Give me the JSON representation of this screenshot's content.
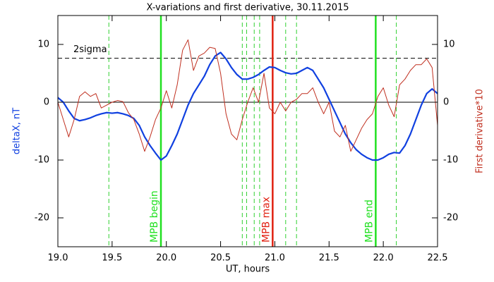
{
  "chart_data": {
    "type": "line",
    "title": "X-variations and first derivative, 30.11.2015",
    "xlabel": "UT, hours",
    "ylabel": "deltaX, nT",
    "y2label": "First derivative*10",
    "xlim": [
      19.0,
      22.5
    ],
    "xticks": [
      {
        "value": 19.0,
        "label": "19.0"
      },
      19.5,
      {
        "value": 20.0,
        "label": "20.0"
      },
      20.5,
      {
        "value": 21.0,
        "label": "21.0"
      },
      21.5,
      {
        "value": 22.0,
        "label": "22.0"
      },
      22.5
    ],
    "ylim": [
      -25,
      15
    ],
    "yticks": [
      -20,
      -10,
      0,
      10
    ],
    "y2lim": [
      -25,
      15
    ],
    "y2ticks": [
      -20,
      -10,
      0,
      10
    ],
    "x": [
      19.0,
      19.05,
      19.1,
      19.15,
      19.2,
      19.25,
      19.3,
      19.35,
      19.4,
      19.45,
      19.5,
      19.55,
      19.6,
      19.65,
      19.7,
      19.75,
      19.8,
      19.85,
      19.9,
      19.95,
      20.0,
      20.05,
      20.1,
      20.15,
      20.2,
      20.25,
      20.3,
      20.35,
      20.4,
      20.45,
      20.5,
      20.55,
      20.6,
      20.65,
      20.7,
      20.75,
      20.8,
      20.85,
      20.9,
      20.95,
      21.0,
      21.05,
      21.1,
      21.15,
      21.2,
      21.25,
      21.3,
      21.35,
      21.4,
      21.45,
      21.5,
      21.55,
      21.6,
      21.65,
      21.7,
      21.75,
      21.8,
      21.85,
      21.9,
      21.95,
      22.0,
      22.05,
      22.1,
      22.15,
      22.2,
      22.25,
      22.3,
      22.35,
      22.4,
      22.45,
      22.5
    ],
    "series": [
      {
        "name": "deltaX, nT",
        "color": "#1040e0",
        "width": 2.2,
        "values": [
          0.8,
          0,
          -1.5,
          -2.8,
          -3.2,
          -3,
          -2.7,
          -2.3,
          -2,
          -1.8,
          -1.9,
          -1.8,
          -2,
          -2.3,
          -2.8,
          -4,
          -6,
          -7.5,
          -8.8,
          -10,
          -9.3,
          -7.5,
          -5.5,
          -3,
          -0.5,
          1.5,
          3,
          4.5,
          6.5,
          8,
          8.6,
          7.5,
          6,
          4.8,
          4,
          4,
          4.3,
          4.8,
          5.5,
          6.1,
          6,
          5.5,
          5.1,
          4.9,
          5,
          5.5,
          6,
          5.5,
          4,
          2.5,
          0.5,
          -1.5,
          -3.5,
          -5.5,
          -7,
          -8.2,
          -9,
          -9.6,
          -10,
          -10,
          -9.6,
          -9,
          -8.7,
          -8.8,
          -7.5,
          -5.5,
          -3,
          -0.5,
          1.5,
          2.3,
          1.5
        ]
      },
      {
        "name": "First derivative*10",
        "color": "#c03020",
        "width": 1,
        "axis": "y2",
        "values": [
          0,
          -3,
          -6,
          -3,
          1,
          1.8,
          1,
          1.5,
          -1,
          -0.5,
          0,
          0.3,
          0.1,
          -1.8,
          -3,
          -5.5,
          -8.5,
          -6,
          -3,
          -1,
          2,
          -1,
          3,
          9,
          10.8,
          5.5,
          8,
          8.5,
          9.5,
          9.3,
          5,
          -2,
          -5.5,
          -6.5,
          -3,
          0,
          2.5,
          0,
          5,
          -1,
          -2,
          0,
          -1.5,
          0,
          0.5,
          1.5,
          1.5,
          2.5,
          0,
          -2,
          0,
          -5,
          -6,
          -4,
          -8.5,
          -6.5,
          -4.5,
          -3,
          -2,
          1,
          2.5,
          -0.5,
          -2.5,
          3,
          4,
          5.5,
          6.5,
          6.5,
          7.5,
          6,
          -4
        ]
      }
    ],
    "hlines": [
      {
        "y": 0,
        "color": "#000000",
        "style": "solid"
      },
      {
        "y": 7.6,
        "color": "#000000",
        "style": "dashed",
        "label": "2sigma"
      }
    ],
    "vlines": [
      {
        "x": 19.47,
        "color": "#30d030",
        "style": "dashed"
      },
      {
        "x": 19.95,
        "color": "#20e020",
        "style": "solid",
        "label": "MPB begin"
      },
      {
        "x": 20.7,
        "color": "#30d030",
        "style": "dashed"
      },
      {
        "x": 20.74,
        "color": "#30d030",
        "style": "dashed"
      },
      {
        "x": 20.81,
        "color": "#30d030",
        "style": "dashed"
      },
      {
        "x": 20.86,
        "color": "#30d030",
        "style": "dashed"
      },
      {
        "x": 20.98,
        "color": "#e02010",
        "style": "solid",
        "label": "MPB max"
      },
      {
        "x": 21.1,
        "color": "#30d030",
        "style": "dashed"
      },
      {
        "x": 21.2,
        "color": "#30d030",
        "style": "dashed"
      },
      {
        "x": 21.93,
        "color": "#20e020",
        "style": "solid",
        "label": "MPB end"
      },
      {
        "x": 22.12,
        "color": "#30d030",
        "style": "dashed"
      }
    ]
  }
}
